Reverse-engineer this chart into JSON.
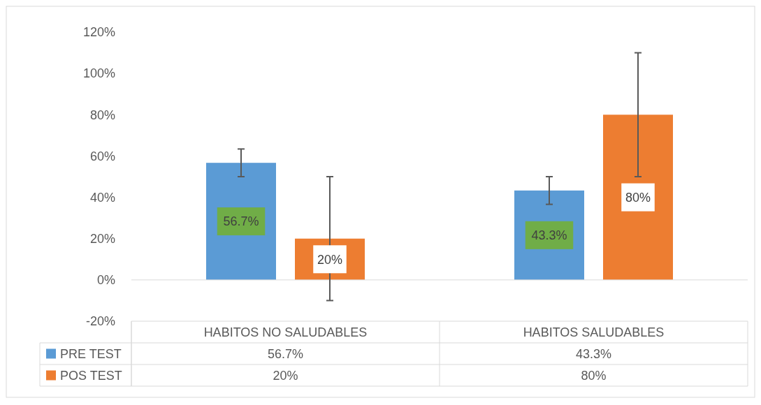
{
  "chart_data": {
    "type": "bar",
    "categories": [
      "HABITOS NO SALUDABLES",
      "HABITOS SALUDABLES"
    ],
    "series": [
      {
        "name": "PRE TEST",
        "color": "#5b9bd5",
        "values": [
          56.7,
          43.3
        ],
        "errors": [
          6.7,
          6.7
        ],
        "value_labels": [
          "56.7%",
          "43.3%"
        ]
      },
      {
        "name": "POS TEST",
        "color": "#ed7d31",
        "values": [
          20,
          80
        ],
        "errors": [
          30,
          30
        ],
        "value_labels": [
          "20%",
          "80%"
        ]
      }
    ],
    "ylim": [
      -20,
      120
    ],
    "yticks": [
      {
        "value": -20,
        "label": "-20%"
      },
      {
        "value": 0,
        "label": "0%"
      },
      {
        "value": 20,
        "label": "20%"
      },
      {
        "value": 40,
        "label": "40%"
      },
      {
        "value": 60,
        "label": "60%"
      },
      {
        "value": 80,
        "label": "80%"
      },
      {
        "value": 100,
        "label": "100%"
      },
      {
        "value": 120,
        "label": "120%"
      }
    ],
    "legend": "bottom"
  }
}
